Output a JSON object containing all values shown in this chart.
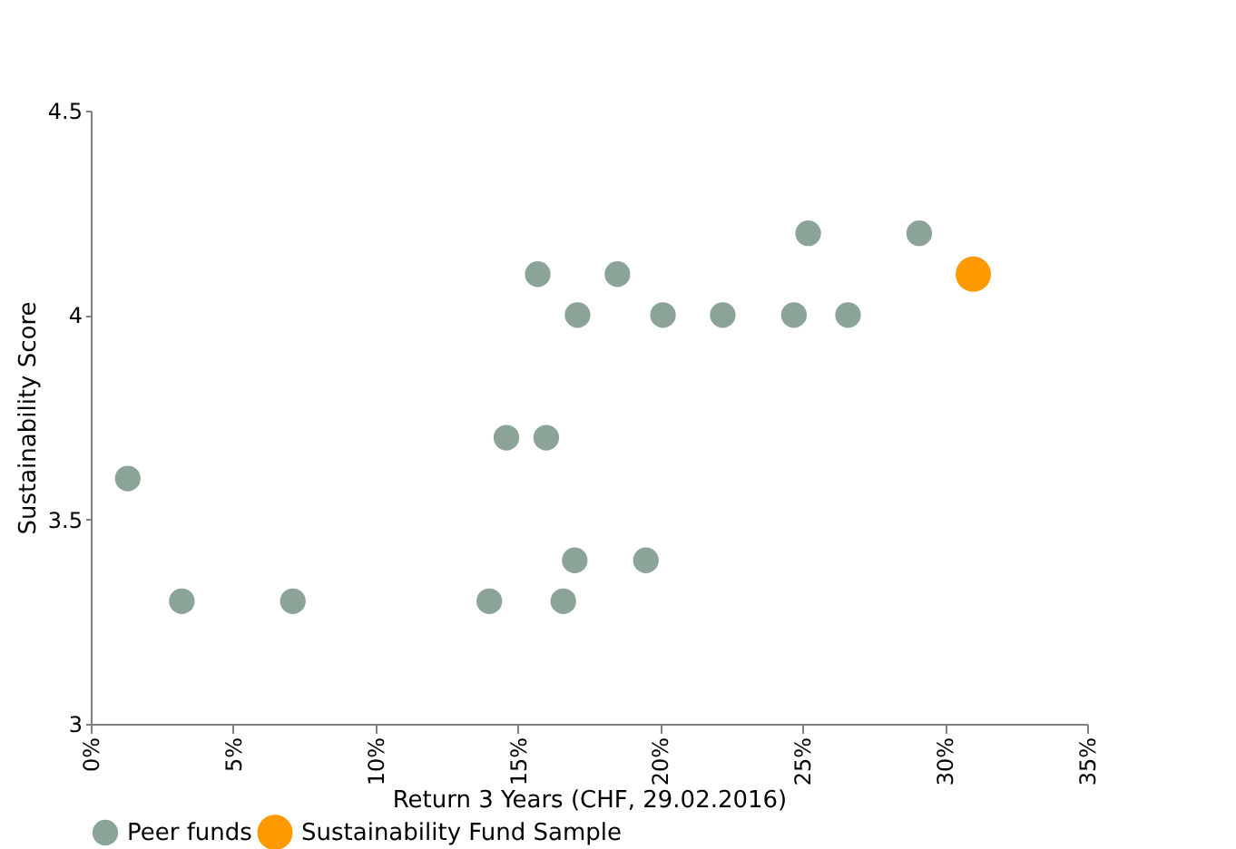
{
  "chart_data": {
    "type": "scatter",
    "xlabel": "Return 3 Years (CHF, 29.02.2016)",
    "ylabel": "Sustainability Score",
    "xlim": [
      0,
      35
    ],
    "xticks": [
      {
        "value": 0,
        "label": "0%"
      },
      {
        "value": 5,
        "label": "5%"
      },
      {
        "value": 10,
        "label": "10%"
      },
      {
        "value": 15,
        "label": "15%"
      },
      {
        "value": 20,
        "label": "20%"
      },
      {
        "value": 25,
        "label": "25%"
      },
      {
        "value": 30,
        "label": "30%"
      },
      {
        "value": 35,
        "label": "35%"
      }
    ],
    "ylim": [
      3,
      4.5
    ],
    "yticks": [
      3,
      3.5,
      4,
      4.5
    ],
    "grid": false,
    "legend": "bottom left",
    "marker": "circle",
    "series": [
      {
        "name": "Peer funds",
        "color": "#8ca398",
        "x": [
          1.3,
          3.2,
          7.1,
          14.0,
          16.6,
          17.0,
          19.5,
          14.6,
          16.0,
          15.7,
          18.5,
          17.1,
          20.1,
          22.2,
          24.7,
          26.6,
          25.2,
          29.1
        ],
        "values": [
          3.6,
          3.3,
          3.3,
          3.3,
          3.3,
          3.4,
          3.4,
          3.7,
          3.7,
          4.1,
          4.1,
          4.0,
          4.0,
          4.0,
          4.0,
          4.0,
          4.2,
          4.2
        ]
      },
      {
        "name": "Sustainability Fund Sample",
        "color": "#ff9900",
        "x": [
          31.0
        ],
        "values": [
          4.1
        ]
      }
    ]
  }
}
